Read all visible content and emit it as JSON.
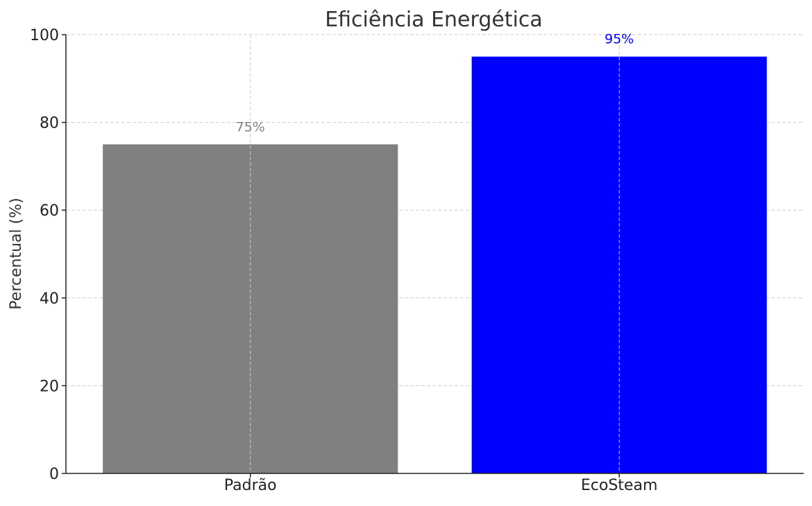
{
  "chart_data": {
    "type": "bar",
    "title": "Eficiência Energética",
    "xlabel": "",
    "ylabel": "Percentual (%)",
    "categories": [
      "Padrão",
      "EcoSteam"
    ],
    "values": [
      75,
      95
    ],
    "value_labels": [
      "75%",
      "95%"
    ],
    "bar_colors": [
      "#808080",
      "#0000ff"
    ],
    "label_colors": [
      "#808080",
      "#0000ff"
    ],
    "ylim": [
      0,
      100
    ],
    "yticks": [
      0,
      20,
      40,
      60,
      80,
      100
    ],
    "ytick_labels": [
      "0",
      "20",
      "40",
      "60",
      "80",
      "100"
    ],
    "grid": true,
    "grid_color": "#cccccc",
    "legend": "none"
  }
}
